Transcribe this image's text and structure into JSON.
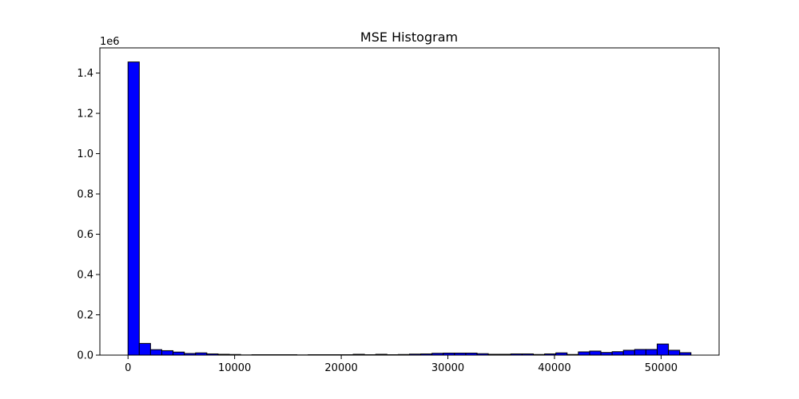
{
  "chart_data": {
    "type": "bar",
    "title": "MSE Histogram",
    "xlabel": "",
    "ylabel": "",
    "y_offset_label": "1e6",
    "xlim": [
      -2640,
      55440
    ],
    "ylim": [
      0,
      1.525
    ],
    "x_ticks": [
      0,
      10000,
      20000,
      30000,
      40000,
      50000
    ],
    "x_tick_labels": [
      "0",
      "10000",
      "20000",
      "30000",
      "40000",
      "50000"
    ],
    "y_ticks": [
      0.0,
      0.2,
      0.4,
      0.6,
      0.8,
      1.0,
      1.2,
      1.4
    ],
    "y_tick_labels": [
      "0.0",
      "0.2",
      "0.4",
      "0.6",
      "0.8",
      "1.0",
      "1.2",
      "1.4"
    ],
    "bin_width": 1056,
    "bin_starts": [
      0,
      1056,
      2112,
      3168,
      4224,
      5280,
      6336,
      7392,
      8448,
      9504,
      10560,
      11616,
      12672,
      13728,
      14784,
      15840,
      16896,
      17952,
      19008,
      20064,
      21120,
      22176,
      23232,
      24288,
      25344,
      26400,
      27456,
      28512,
      29568,
      30624,
      31680,
      32736,
      33792,
      34848,
      35904,
      36960,
      38016,
      39072,
      40128,
      41184,
      42240,
      43296,
      44352,
      45408,
      46464,
      47520,
      48576,
      49632,
      50688,
      51744
    ],
    "values": [
      1.455,
      0.058,
      0.027,
      0.022,
      0.015,
      0.008,
      0.011,
      0.006,
      0.004,
      0.003,
      0.001,
      0.002,
      0.002,
      0.002,
      0.002,
      0.001,
      0.002,
      0.002,
      0.002,
      0.002,
      0.004,
      0.002,
      0.004,
      0.002,
      0.003,
      0.005,
      0.006,
      0.009,
      0.01,
      0.01,
      0.01,
      0.007,
      0.004,
      0.004,
      0.006,
      0.006,
      0.003,
      0.006,
      0.011,
      0.003,
      0.016,
      0.02,
      0.013,
      0.017,
      0.024,
      0.028,
      0.028,
      0.055,
      0.024,
      0.012
    ],
    "bar_color": "#0000ff",
    "edge_color": "#000000",
    "grid": false
  }
}
